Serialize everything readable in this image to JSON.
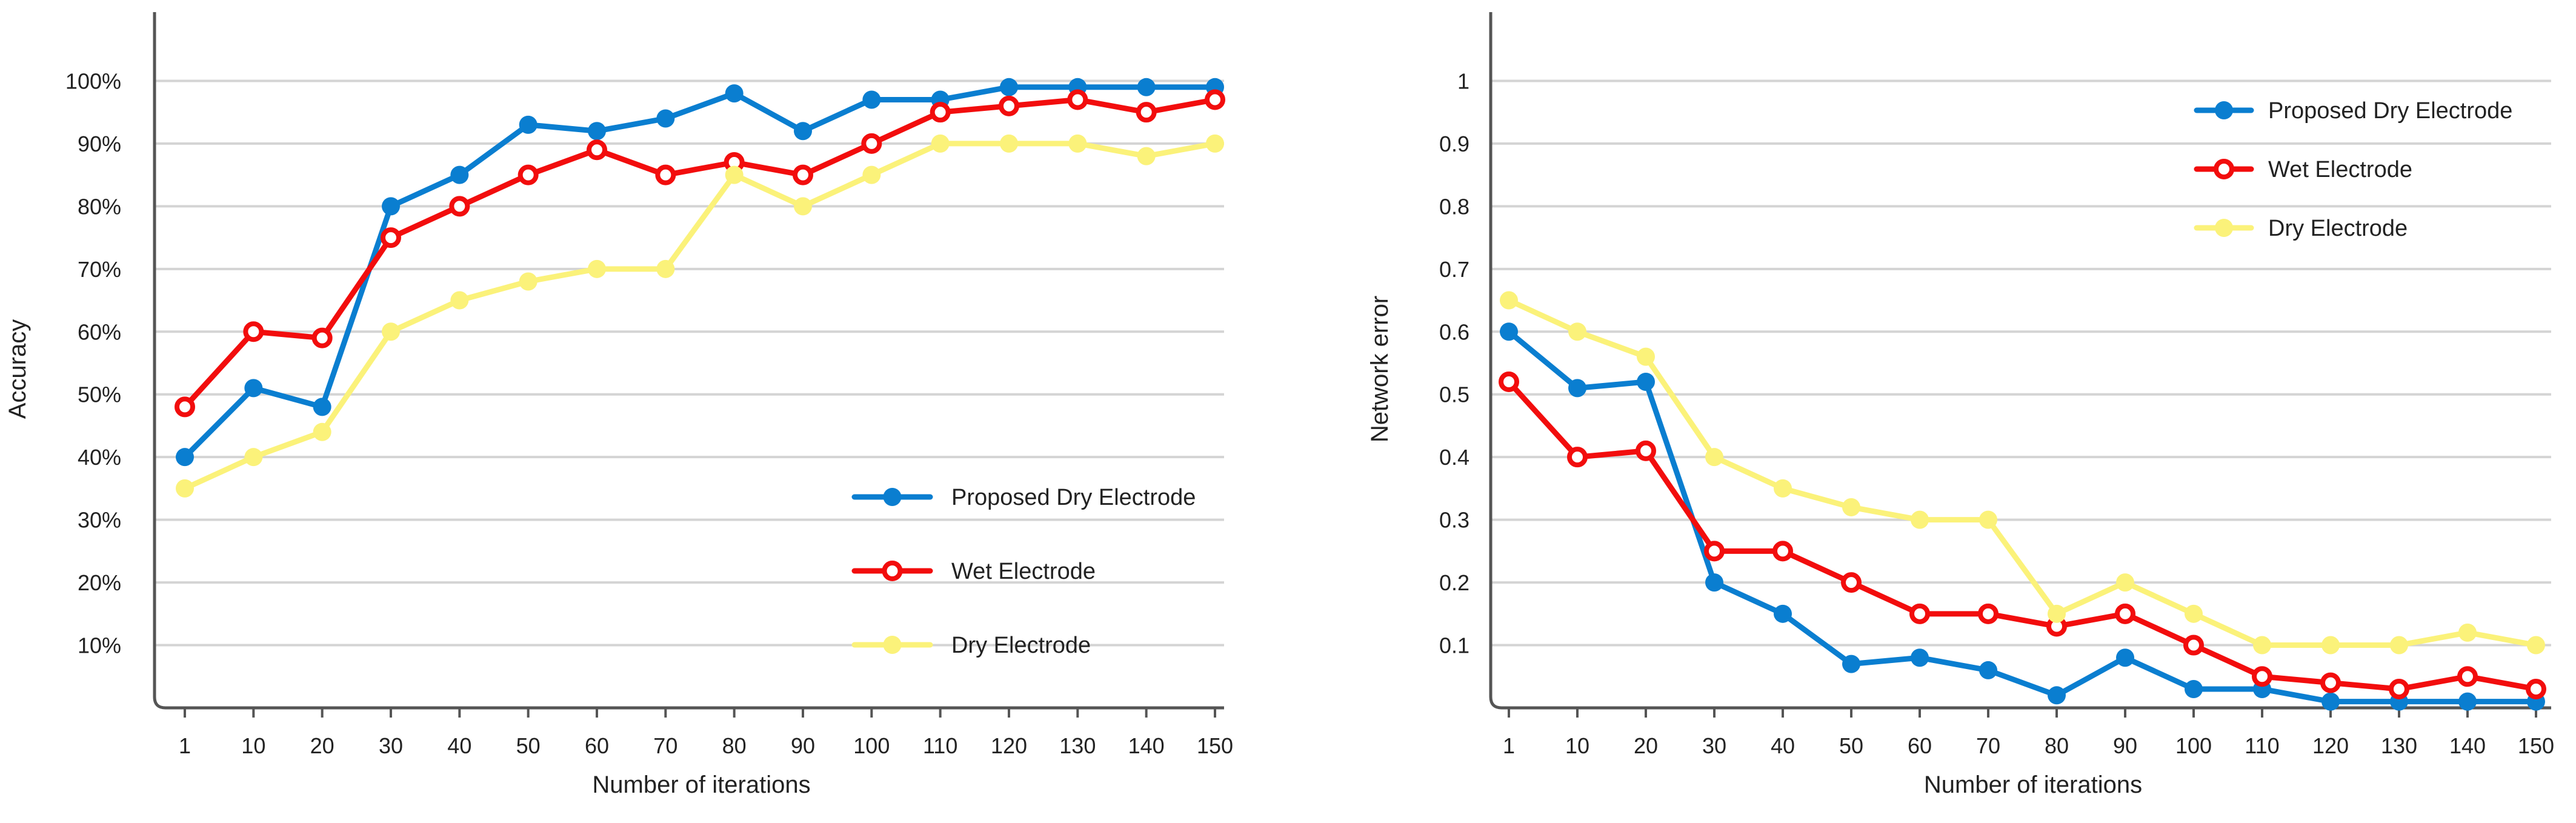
{
  "chart_data": [
    {
      "type": "line",
      "title": "",
      "xlabel": "Number of iterations",
      "ylabel": "Accuracy",
      "categories": [
        "1",
        "10",
        "20",
        "30",
        "40",
        "50",
        "60",
        "70",
        "80",
        "90",
        "100",
        "110",
        "120",
        "130",
        "140",
        "150"
      ],
      "ylim": [
        0,
        1.1
      ],
      "yticks": [
        0.1,
        0.2,
        0.3,
        0.4,
        0.5,
        0.6,
        0.7,
        0.8,
        0.9,
        1.0
      ],
      "ytick_labels": [
        "10%",
        "20%",
        "30%",
        "40%",
        "50%",
        "60%",
        "70%",
        "80%",
        "90%",
        "100%"
      ],
      "grid": true,
      "legend_position": "bottom-right",
      "series": [
        {
          "name": "Proposed Dry Electrode",
          "color": "#0a7ed0",
          "marker": "filled",
          "values": [
            0.4,
            0.51,
            0.48,
            0.8,
            0.85,
            0.93,
            0.92,
            0.94,
            0.98,
            0.92,
            0.97,
            0.97,
            0.99,
            0.99,
            0.99,
            0.99
          ]
        },
        {
          "name": "Wet Electrode",
          "color": "#f20d0d",
          "marker": "ring",
          "values": [
            0.48,
            0.6,
            0.59,
            0.75,
            0.8,
            0.85,
            0.89,
            0.85,
            0.87,
            0.85,
            0.9,
            0.95,
            0.96,
            0.97,
            0.95,
            0.97
          ]
        },
        {
          "name": "Dry Electrode",
          "color": "#fbf27a",
          "marker": "filled",
          "values": [
            0.35,
            0.4,
            0.44,
            0.6,
            0.65,
            0.68,
            0.7,
            0.7,
            0.85,
            0.8,
            0.85,
            0.9,
            0.9,
            0.9,
            0.88,
            0.9
          ]
        }
      ]
    },
    {
      "type": "line",
      "title": "",
      "xlabel": "Number of iterations",
      "ylabel": "Network error",
      "categories": [
        "1",
        "10",
        "20",
        "30",
        "40",
        "50",
        "60",
        "70",
        "80",
        "90",
        "100",
        "110",
        "120",
        "130",
        "140",
        "150"
      ],
      "ylim": [
        0,
        1.1
      ],
      "yticks": [
        0.1,
        0.2,
        0.3,
        0.4,
        0.5,
        0.6,
        0.7,
        0.8,
        0.9,
        1.0
      ],
      "ytick_labels": [
        "0.1",
        "0.2",
        "0.3",
        "0.4",
        "0.5",
        "0.6",
        "0.7",
        "0.8",
        "0.9",
        "1"
      ],
      "grid": true,
      "legend_position": "top-right",
      "series": [
        {
          "name": "Proposed Dry Electrode",
          "color": "#0a7ed0",
          "marker": "filled",
          "values": [
            0.6,
            0.51,
            0.52,
            0.2,
            0.15,
            0.07,
            0.08,
            0.06,
            0.02,
            0.08,
            0.03,
            0.03,
            0.01,
            0.01,
            0.01,
            0.01
          ]
        },
        {
          "name": "Wet Electrode",
          "color": "#f20d0d",
          "marker": "ring",
          "values": [
            0.52,
            0.4,
            0.41,
            0.25,
            0.25,
            0.2,
            0.15,
            0.15,
            0.13,
            0.15,
            0.1,
            0.05,
            0.04,
            0.03,
            0.05,
            0.03
          ]
        },
        {
          "name": "Dry Electrode",
          "color": "#fbf27a",
          "marker": "filled",
          "values": [
            0.65,
            0.6,
            0.56,
            0.4,
            0.35,
            0.32,
            0.3,
            0.3,
            0.15,
            0.2,
            0.15,
            0.1,
            0.1,
            0.1,
            0.12,
            0.1
          ]
        }
      ]
    }
  ]
}
